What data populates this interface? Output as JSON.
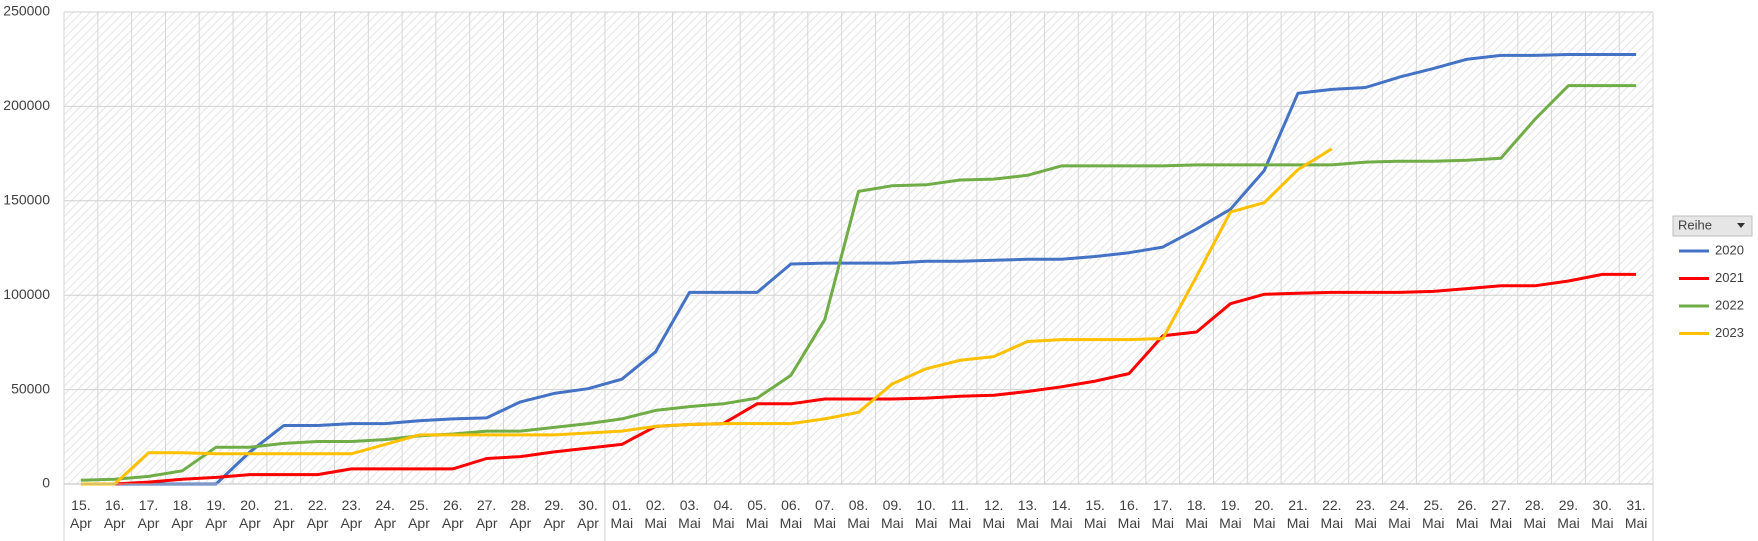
{
  "chart_data": {
    "type": "line",
    "categories": [
      "15. Apr",
      "16. Apr",
      "17. Apr",
      "18. Apr",
      "19. Apr",
      "20. Apr",
      "21. Apr",
      "22. Apr",
      "23. Apr",
      "24. Apr",
      "25. Apr",
      "26. Apr",
      "27. Apr",
      "28. Apr",
      "29. Apr",
      "30. Apr",
      "01. Mai",
      "02. Mai",
      "03. Mai",
      "04. Mai",
      "05. Mai",
      "06. Mai",
      "07. Mai",
      "08. Mai",
      "09. Mai",
      "10. Mai",
      "11. Mai",
      "12. Mai",
      "13. Mai",
      "14. Mai",
      "15. Mai",
      "16. Mai",
      "17. Mai",
      "18. Mai",
      "19. Mai",
      "20. Mai",
      "21. Mai",
      "22. Mai",
      "23. Mai",
      "24. Mai",
      "25. Mai",
      "26. Mai",
      "27. Mai",
      "28. Mai",
      "29. Mai",
      "30. Mai",
      "31. Mai"
    ],
    "series": [
      {
        "name": "2020",
        "color": "#4472c4",
        "values": [
          null,
          0,
          0,
          0,
          0,
          17000,
          31000,
          31000,
          32000,
          32000,
          33500,
          34500,
          35000,
          43500,
          48000,
          50500,
          55500,
          70000,
          101500,
          101500,
          101500,
          116500,
          117000,
          117000,
          117000,
          118000,
          118000,
          118500,
          119000,
          119000,
          120500,
          122500,
          125500,
          135000,
          145500,
          166000,
          207000,
          209000,
          210000,
          215500,
          220000,
          225000,
          227000,
          227000,
          227500,
          227500,
          227500
        ]
      },
      {
        "name": "2021",
        "color": "#ff0000",
        "values": [
          null,
          0,
          1000,
          2500,
          3500,
          5000,
          5000,
          5000,
          8000,
          8000,
          8000,
          8000,
          13500,
          14500,
          17000,
          19000,
          21000,
          30500,
          31500,
          32000,
          42500,
          42500,
          45000,
          45000,
          45000,
          45500,
          46500,
          47000,
          49000,
          51500,
          54500,
          58500,
          78500,
          80500,
          95500,
          100500,
          101000,
          101500,
          101500,
          101500,
          102000,
          103500,
          105000,
          105000,
          107500,
          111000,
          111000
        ]
      },
      {
        "name": "2022",
        "color": "#70ad47",
        "values": [
          2000,
          2500,
          4000,
          7000,
          19500,
          19500,
          21500,
          22500,
          22500,
          23500,
          25500,
          26500,
          28000,
          28000,
          30000,
          32000,
          34500,
          39000,
          41000,
          42500,
          45500,
          57500,
          87000,
          155000,
          158000,
          158500,
          161000,
          161500,
          163500,
          168500,
          168500,
          168500,
          168500,
          169000,
          169000,
          169000,
          169000,
          169000,
          170500,
          171000,
          171000,
          171500,
          172500,
          193000,
          211000,
          211000,
          211000
        ]
      },
      {
        "name": "2023",
        "color": "#ffc000",
        "values": [
          0,
          0,
          16500,
          16500,
          16000,
          16000,
          16000,
          16000,
          16000,
          21000,
          26000,
          26000,
          26000,
          26000,
          26000,
          27000,
          28000,
          30500,
          31500,
          32000,
          32000,
          32000,
          34500,
          38000,
          53000,
          61000,
          65500,
          67500,
          75500,
          76500,
          76500,
          76500,
          77000,
          110000,
          144000,
          149000,
          166500,
          177500,
          null,
          null,
          null,
          null,
          null,
          null,
          null,
          null,
          null
        ]
      }
    ],
    "ylim": [
      0,
      250000
    ],
    "yticks": [
      0,
      50000,
      100000,
      150000,
      200000,
      250000
    ],
    "grid": true,
    "legend": "right",
    "legend_title": "Reihe"
  }
}
